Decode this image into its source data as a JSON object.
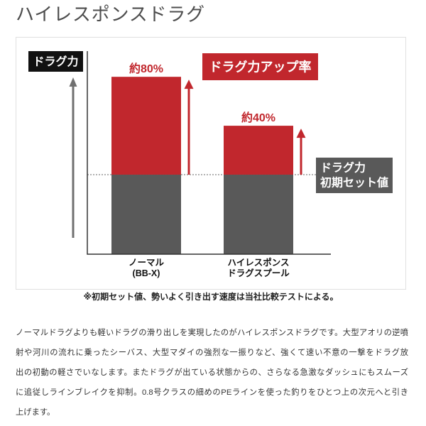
{
  "header": {
    "title": "ハイレスポンスドラグ"
  },
  "chart_data": {
    "type": "bar",
    "stacked": true,
    "categories": [
      [
        "ノーマル",
        "(BB-X)"
      ],
      [
        "ハイレスポンス",
        "ドラグスプール"
      ]
    ],
    "ylabel": "ドラグ力",
    "ylim": [
      0,
      166
    ],
    "grid": false,
    "series": [
      {
        "name": [
          "ドラグ力",
          "初期セット値"
        ],
        "color": "#595959",
        "values": [
          65,
          65
        ]
      },
      {
        "name": "ドラグ力アップ率",
        "color": "#c1272d",
        "values": [
          80,
          40
        ],
        "labels": [
          "約80%",
          "約40%"
        ]
      }
    ]
  },
  "footnote": "※初期セット値、勢いよく引き出す速度は当社比較テストによる。",
  "description": {
    "lines": [
      "ノーマルドラグよりも軽いドラグの滑り出しを実現したのがハイレスポンスドラグです。大型アオリの逆噴",
      "射や河川の流れに乗ったシーバス、大型マダイの強烈な一振りなど、強くて速い不意の一撃をドラグ放",
      "出の初動の軽さでいなします。またドラグが出ている状態からの、さらなる急激なダッシュにもスムーズ",
      "に追従しラインブレイクを抑制。0.8号クラスの細めのPEラインを使った釣りをひとつ上の次元へと引き",
      "上げます。"
    ]
  }
}
